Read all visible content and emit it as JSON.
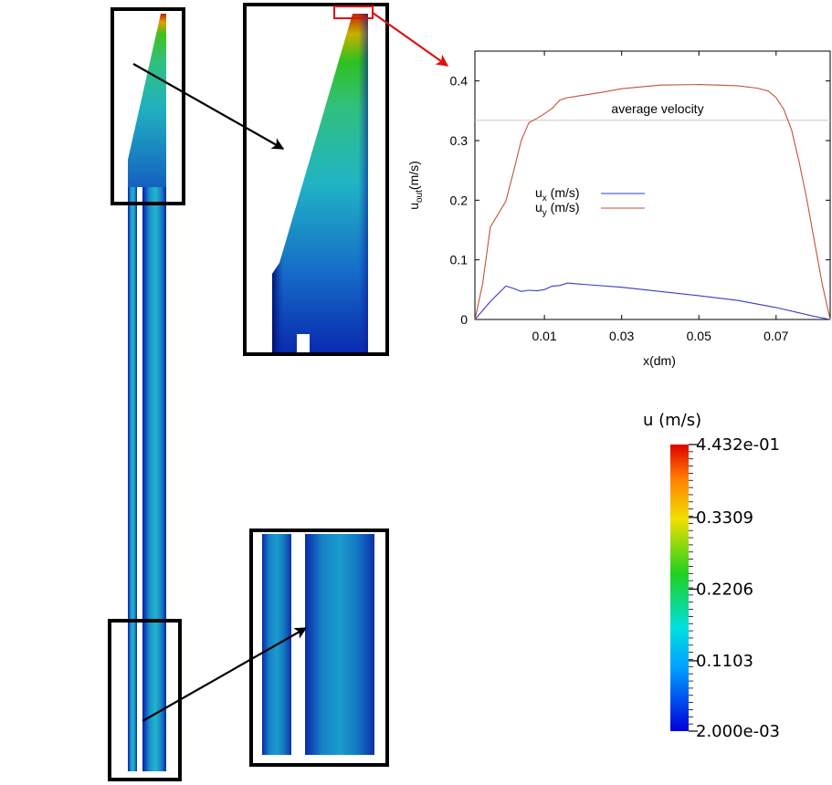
{
  "colors": {
    "ux_line": "#3a3acc",
    "uy_line": "#c0533a",
    "avg_line": "#c8c8c8",
    "frame": "#000000",
    "highlight": "#e01010"
  },
  "colorbar": {
    "title": "u (m/s)",
    "min": 0.002,
    "max": 0.4432,
    "labels": [
      "4.432e-01",
      "0.3309",
      "0.2206",
      "0.1103",
      "2.000e-03"
    ],
    "label_values": [
      0.4432,
      0.3309,
      0.2206,
      0.1103,
      0.002
    ],
    "colormap": [
      "#0000d8",
      "#00a0ff",
      "#00e0e0",
      "#20d020",
      "#f0e000",
      "#ff8000",
      "#e00000"
    ]
  },
  "chart_data": {
    "type": "line",
    "xlabel": "x(dm)",
    "ylabel_main": "u",
    "ylabel_sub": "out",
    "ylabel_unit": "(m/s)",
    "xlim": [
      -0.008,
      0.084
    ],
    "ylim": [
      0,
      0.45
    ],
    "xticks": [
      0.01,
      0.03,
      0.05,
      0.07
    ],
    "xtick_labels": [
      "0.01",
      "0.03",
      "0.05",
      "0.07"
    ],
    "yticks": [
      0,
      0.1,
      0.2,
      0.3,
      0.4
    ],
    "ytick_labels": [
      "0",
      "0.1",
      "0.2",
      "0.3",
      "0.4"
    ],
    "annotation": "average velocity",
    "average_velocity": 0.334,
    "grid": false,
    "legend_position": "center-left",
    "series": [
      {
        "name": "u",
        "name_sub": "x",
        "name_unit": "(m/s)",
        "color_key": "ux_line",
        "x": [
          -0.008,
          -0.004,
          0.0,
          0.002,
          0.004,
          0.006,
          0.008,
          0.01,
          0.012,
          0.014,
          0.016,
          0.02,
          0.03,
          0.04,
          0.05,
          0.06,
          0.07,
          0.076,
          0.08,
          0.084
        ],
        "y": [
          0.0,
          0.03,
          0.056,
          0.052,
          0.047,
          0.049,
          0.048,
          0.05,
          0.056,
          0.057,
          0.061,
          0.059,
          0.054,
          0.047,
          0.04,
          0.032,
          0.02,
          0.011,
          0.005,
          0.0
        ]
      },
      {
        "name": "u",
        "name_sub": "y",
        "name_unit": "(m/s)",
        "color_key": "uy_line",
        "x": [
          -0.008,
          -0.006,
          -0.004,
          0.0,
          0.002,
          0.004,
          0.006,
          0.008,
          0.01,
          0.012,
          0.014,
          0.016,
          0.018,
          0.02,
          0.025,
          0.03,
          0.04,
          0.05,
          0.06,
          0.065,
          0.068,
          0.07,
          0.072,
          0.074,
          0.076,
          0.078,
          0.08,
          0.082,
          0.084
        ],
        "y": [
          0.0,
          0.06,
          0.155,
          0.198,
          0.248,
          0.3,
          0.33,
          0.337,
          0.345,
          0.354,
          0.368,
          0.372,
          0.374,
          0.376,
          0.381,
          0.387,
          0.393,
          0.394,
          0.392,
          0.388,
          0.383,
          0.372,
          0.352,
          0.318,
          0.263,
          0.2,
          0.128,
          0.058,
          0.0
        ]
      }
    ]
  },
  "zoom_arrows": [
    "top-zoom-arrow",
    "bottom-zoom-arrow",
    "outlet-to-plot-arrow"
  ]
}
